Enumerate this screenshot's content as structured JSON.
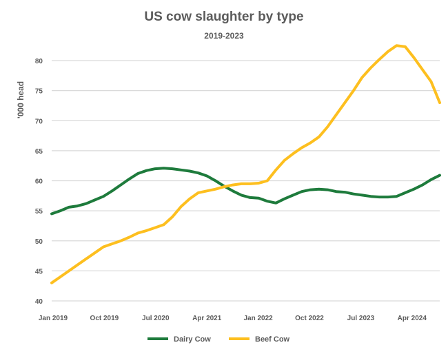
{
  "chart_data": {
    "type": "line",
    "title": "US cow slaughter by type",
    "subtitle": "2019-2023",
    "ylabel": "'000 head",
    "xlabel": "",
    "ylim": [
      40,
      80
    ],
    "yticks": [
      40,
      45,
      50,
      55,
      60,
      65,
      70,
      75,
      80
    ],
    "grid": true,
    "legend_position": "bottom",
    "x_ticks": [
      "Jan 2019",
      "Oct 2019",
      "Jul 2020",
      "Apr 2021",
      "Jan 2022",
      "Oct 2022",
      "Jul 2023",
      "Apr 2024"
    ],
    "series": [
      {
        "name": "Dairy Cow",
        "color": "#1e7b3c",
        "points": [
          [
            0,
            54.5
          ],
          [
            1,
            55.0
          ],
          [
            2,
            55.6
          ],
          [
            3,
            55.8
          ],
          [
            4,
            56.2
          ],
          [
            5,
            56.8
          ],
          [
            6,
            57.4
          ],
          [
            7,
            58.3
          ],
          [
            8,
            59.3
          ],
          [
            9,
            60.3
          ],
          [
            10,
            61.2
          ],
          [
            11,
            61.7
          ],
          [
            12,
            62.0
          ],
          [
            13,
            62.1
          ],
          [
            14,
            62.0
          ],
          [
            15,
            61.8
          ],
          [
            16,
            61.6
          ],
          [
            17,
            61.3
          ],
          [
            18,
            60.8
          ],
          [
            19,
            60.0
          ],
          [
            20,
            59.1
          ],
          [
            21,
            58.3
          ],
          [
            22,
            57.6
          ],
          [
            23,
            57.2
          ],
          [
            24,
            57.1
          ],
          [
            25,
            56.6
          ],
          [
            26,
            56.3
          ],
          [
            27,
            57.0
          ],
          [
            28,
            57.6
          ],
          [
            29,
            58.2
          ],
          [
            30,
            58.5
          ],
          [
            31,
            58.6
          ],
          [
            32,
            58.5
          ],
          [
            33,
            58.2
          ],
          [
            34,
            58.1
          ],
          [
            35,
            57.8
          ],
          [
            36,
            57.6
          ],
          [
            37,
            57.4
          ],
          [
            38,
            57.3
          ],
          [
            39,
            57.3
          ],
          [
            40,
            57.4
          ],
          [
            41,
            58.0
          ],
          [
            42,
            58.6
          ],
          [
            43,
            59.3
          ],
          [
            44,
            60.2
          ],
          [
            45,
            60.9
          ]
        ]
      },
      {
        "name": "Beef Cow",
        "color": "#fdbf1f",
        "points": [
          [
            0,
            43.0
          ],
          [
            1,
            44.0
          ],
          [
            2,
            45.0
          ],
          [
            3,
            46.0
          ],
          [
            4,
            47.0
          ],
          [
            5,
            48.0
          ],
          [
            6,
            49.0
          ],
          [
            7,
            49.5
          ],
          [
            8,
            50.0
          ],
          [
            9,
            50.6
          ],
          [
            10,
            51.3
          ],
          [
            11,
            51.7
          ],
          [
            12,
            52.2
          ],
          [
            13,
            52.7
          ],
          [
            14,
            54.0
          ],
          [
            15,
            55.7
          ],
          [
            16,
            57.0
          ],
          [
            17,
            58.0
          ],
          [
            18,
            58.3
          ],
          [
            19,
            58.6
          ],
          [
            20,
            59.0
          ],
          [
            21,
            59.3
          ],
          [
            22,
            59.5
          ],
          [
            23,
            59.5
          ],
          [
            24,
            59.6
          ],
          [
            25,
            60.0
          ],
          [
            26,
            61.8
          ],
          [
            27,
            63.4
          ],
          [
            28,
            64.5
          ],
          [
            29,
            65.5
          ],
          [
            30,
            66.3
          ],
          [
            31,
            67.3
          ],
          [
            32,
            69.0
          ],
          [
            33,
            71.0
          ],
          [
            34,
            73.0
          ],
          [
            35,
            75.0
          ],
          [
            36,
            77.2
          ],
          [
            37,
            78.8
          ],
          [
            38,
            80.2
          ],
          [
            39,
            81.5
          ],
          [
            40,
            82.5
          ],
          [
            41,
            82.3
          ],
          [
            42,
            80.5
          ],
          [
            43,
            78.5
          ],
          [
            44,
            76.5
          ],
          [
            45,
            73.0
          ]
        ]
      }
    ]
  }
}
